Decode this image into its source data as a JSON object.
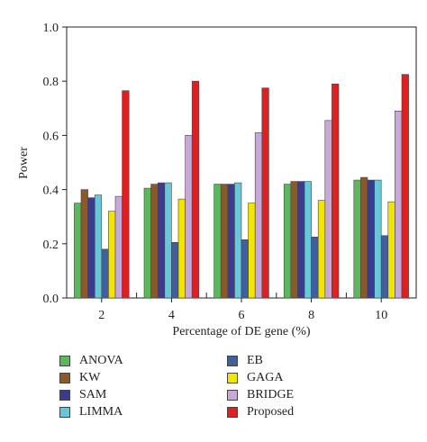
{
  "chart_data": {
    "type": "bar",
    "xlabel": "Percentage of DE gene (%)",
    "ylabel": "Power",
    "categories": [
      "2",
      "4",
      "6",
      "8",
      "10"
    ],
    "ylim": [
      0,
      1.0
    ],
    "yticks": [
      "0.0",
      "0.2",
      "0.4",
      "0.6",
      "0.8",
      "1.0"
    ],
    "legend_position": "bottom",
    "grid": false,
    "series": [
      {
        "name": "ANOVA",
        "color": "#5cb85c",
        "values": [
          0.35,
          0.405,
          0.42,
          0.42,
          0.435
        ]
      },
      {
        "name": "KW",
        "color": "#8b5a2b",
        "values": [
          0.4,
          0.42,
          0.42,
          0.43,
          0.445
        ]
      },
      {
        "name": "SAM",
        "color": "#3b3b8f",
        "values": [
          0.37,
          0.425,
          0.42,
          0.43,
          0.435
        ]
      },
      {
        "name": "LIMMA",
        "color": "#66c8d8",
        "values": [
          0.38,
          0.425,
          0.425,
          0.43,
          0.435
        ]
      },
      {
        "name": "EB",
        "color": "#3f5f9f",
        "values": [
          0.18,
          0.205,
          0.215,
          0.225,
          0.23
        ]
      },
      {
        "name": "GAGA",
        "color": "#f2e600",
        "values": [
          0.32,
          0.365,
          0.35,
          0.36,
          0.355
        ]
      },
      {
        "name": "BRIDGE",
        "color": "#c8a8d8",
        "values": [
          0.375,
          0.6,
          0.61,
          0.655,
          0.69
        ]
      },
      {
        "name": "Proposed",
        "color": "#e02020",
        "values": [
          0.765,
          0.8,
          0.775,
          0.79,
          0.825
        ]
      }
    ]
  }
}
